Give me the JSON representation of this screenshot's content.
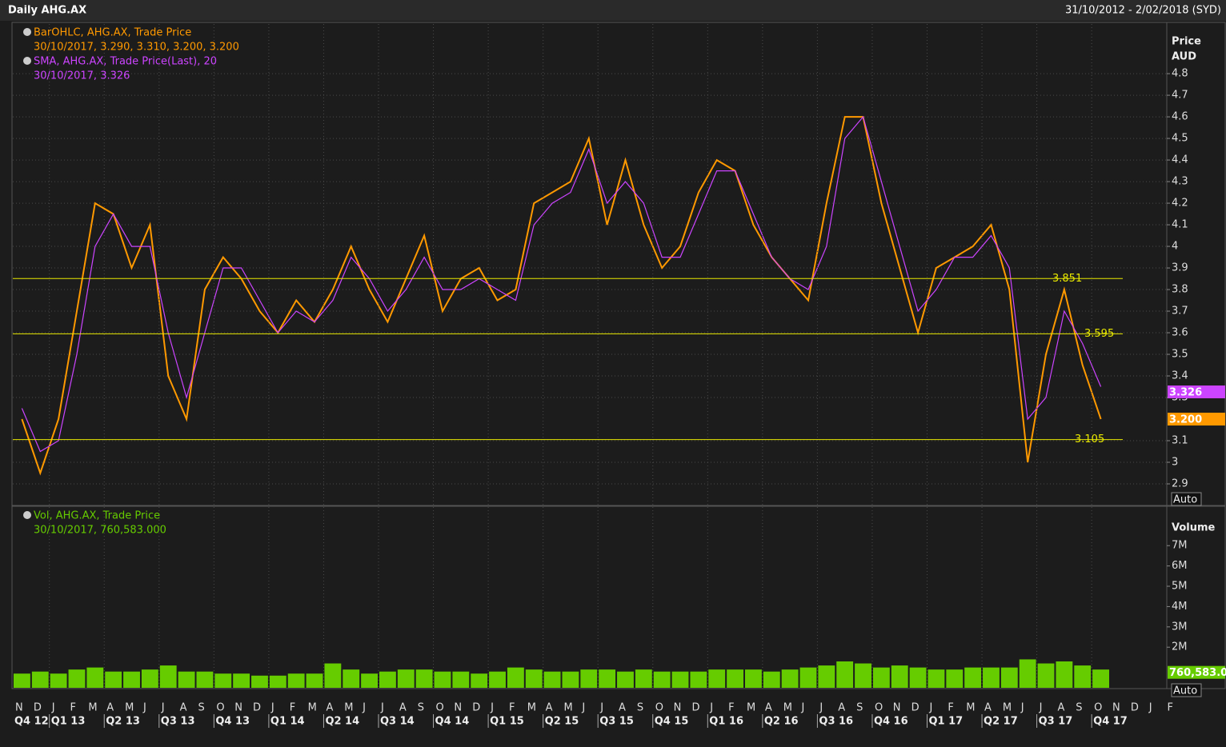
{
  "header": {
    "title": "Daily AHG.AX",
    "range": "31/10/2012 - 2/02/2018 (SYD)"
  },
  "chart_data": [
    {
      "type": "line",
      "axis_label": "Price",
      "axis_unit": "AUD",
      "scale_button": "Auto",
      "legend_details": [
        "30/10/2017, 3.290, 3.310, 3.200, 3.200",
        "30/10/2017, 3.326"
      ],
      "ylim": [
        2.8,
        5.03
      ],
      "yticks": [
        2.9,
        3,
        3.1,
        3.3,
        3.4,
        3.5,
        3.6,
        3.7,
        3.8,
        3.9,
        4,
        4.1,
        4.2,
        4.3,
        4.4,
        4.5,
        4.6,
        4.7,
        4.8
      ],
      "grid": true,
      "series": [
        {
          "name": "BarOHLC, AHG.AX, Trade Price",
          "color": "#ff9900",
          "values": [
            3.2,
            2.95,
            3.2,
            3.7,
            4.2,
            4.15,
            3.9,
            4.1,
            3.4,
            3.2,
            3.8,
            3.95,
            3.85,
            3.7,
            3.6,
            3.75,
            3.65,
            3.8,
            4.0,
            3.8,
            3.65,
            3.85,
            4.05,
            3.7,
            3.85,
            3.9,
            3.75,
            3.8,
            4.2,
            4.25,
            4.3,
            4.5,
            4.1,
            4.4,
            4.1,
            3.9,
            4.0,
            4.25,
            4.4,
            4.35,
            4.1,
            3.95,
            3.85,
            3.75,
            4.2,
            4.6,
            4.6,
            4.2,
            3.9,
            3.6,
            3.9,
            3.95,
            4.0,
            4.1,
            3.8,
            3.0,
            3.5,
            3.8,
            3.45,
            3.2,
            null,
            null,
            null,
            null
          ]
        },
        {
          "name": "SMA, AHG.AX, Trade Price(Last),  20",
          "color": "#cc44ff",
          "values": [
            3.25,
            3.05,
            3.1,
            3.5,
            4.0,
            4.15,
            4.0,
            4.0,
            3.6,
            3.3,
            3.6,
            3.9,
            3.9,
            3.75,
            3.6,
            3.7,
            3.65,
            3.75,
            3.95,
            3.85,
            3.7,
            3.8,
            3.95,
            3.8,
            3.8,
            3.85,
            3.8,
            3.75,
            4.1,
            4.2,
            4.25,
            4.45,
            4.2,
            4.3,
            4.2,
            3.95,
            3.95,
            4.15,
            4.35,
            4.35,
            4.15,
            3.95,
            3.85,
            3.8,
            4.0,
            4.5,
            4.6,
            4.3,
            4.0,
            3.7,
            3.8,
            3.95,
            3.95,
            4.05,
            3.9,
            3.2,
            3.3,
            3.7,
            3.55,
            3.35,
            null,
            null,
            null,
            null
          ]
        }
      ],
      "hlines": [
        3.851,
        3.595,
        3.105
      ],
      "last_labels": [
        {
          "value": 3.326,
          "color": "#cc44ff"
        },
        {
          "value": 3.2,
          "label": "3.200",
          "color": "#ff9900"
        }
      ]
    },
    {
      "type": "bar",
      "axis_label": "Volume",
      "scale_button": "Auto",
      "legend_details": [
        "30/10/2017, 760,583.000"
      ],
      "ylim": [
        0,
        8860000
      ],
      "yticks": [
        {
          "value": 2000000,
          "label": "2M"
        },
        {
          "value": 3000000,
          "label": "3M"
        },
        {
          "value": 4000000,
          "label": "4M"
        },
        {
          "value": 5000000,
          "label": "5M"
        },
        {
          "value": 6000000,
          "label": "6M"
        },
        {
          "value": 7000000,
          "label": "7M"
        }
      ],
      "categories": [
        "N",
        "D",
        "J",
        "F",
        "M",
        "A",
        "M",
        "J",
        "J",
        "A",
        "S",
        "O",
        "N",
        "D",
        "J",
        "F",
        "M",
        "A",
        "M",
        "J",
        "J",
        "A",
        "S",
        "O",
        "N",
        "D",
        "J",
        "F",
        "M",
        "A",
        "M",
        "J",
        "J",
        "A",
        "S",
        "O",
        "N",
        "D",
        "J",
        "F",
        "M",
        "A",
        "M",
        "J",
        "J",
        "A",
        "S",
        "O",
        "N",
        "D",
        "J",
        "F",
        "M",
        "A",
        "M",
        "J",
        "J",
        "A",
        "S",
        "O",
        "N",
        "D",
        "J",
        "F"
      ],
      "quarters": [
        "Q4 12",
        "Q1 13",
        "Q2 13",
        "Q3 13",
        "Q4 13",
        "Q1 14",
        "Q2 14",
        "Q3 14",
        "Q4 14",
        "Q1 15",
        "Q2 15",
        "Q3 15",
        "Q4 15",
        "Q1 16",
        "Q2 16",
        "Q3 16",
        "Q4 16",
        "Q1 17",
        "Q2 17",
        "Q3 17",
        "Q4 17"
      ],
      "series": [
        {
          "name": "Vol, AHG.AX, Trade Price",
          "color": "#66cc00",
          "values": [
            700000,
            800000,
            700000,
            900000,
            1000000,
            800000,
            800000,
            900000,
            1100000,
            800000,
            800000,
            700000,
            700000,
            600000,
            600000,
            700000,
            700000,
            1200000,
            900000,
            700000,
            800000,
            900000,
            900000,
            800000,
            800000,
            700000,
            800000,
            1000000,
            900000,
            800000,
            800000,
            900000,
            900000,
            800000,
            900000,
            800000,
            800000,
            800000,
            900000,
            900000,
            900000,
            800000,
            900000,
            1000000,
            1100000,
            1300000,
            1200000,
            1000000,
            1100000,
            1000000,
            900000,
            900000,
            1000000,
            1000000,
            1000000,
            1400000,
            1200000,
            1300000,
            1100000,
            900000,
            null,
            null,
            null,
            null
          ]
        }
      ],
      "last_labels": [
        {
          "value": 760583,
          "label": "760,583.0",
          "color": "#66cc00"
        }
      ]
    }
  ]
}
